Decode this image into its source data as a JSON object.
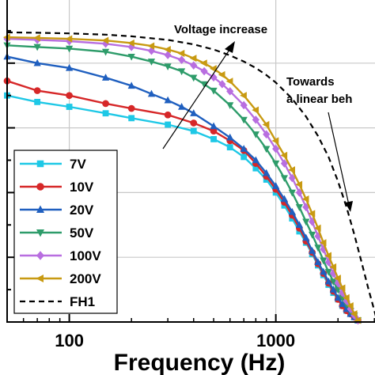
{
  "chart_data": {
    "type": "line",
    "title": "",
    "xlabel": "Frequency (Hz)",
    "ylabel": "",
    "xscale": "log",
    "xlim": [
      50,
      3300
    ],
    "ylim": [
      0,
      1.0
    ],
    "xticks": [
      {
        "value": 100,
        "label": "100"
      },
      {
        "value": 1000,
        "label": "1000"
      }
    ],
    "grid": true,
    "legend_position": "bottom-left",
    "series": [
      {
        "name": "7V",
        "color": "#1ec8e6",
        "marker": "square",
        "dash": false,
        "x": [
          50,
          70,
          100,
          150,
          200,
          300,
          400,
          500,
          600,
          700,
          800,
          900,
          1000,
          1100,
          1200,
          1300,
          1400,
          1500,
          1600,
          1700,
          1800,
          1900,
          2000,
          2100,
          2200,
          2300,
          2400,
          2500
        ],
        "y": [
          0.7,
          0.68,
          0.665,
          0.645,
          0.63,
          0.61,
          0.59,
          0.565,
          0.54,
          0.51,
          0.475,
          0.44,
          0.4,
          0.36,
          0.32,
          0.28,
          0.245,
          0.21,
          0.175,
          0.145,
          0.115,
          0.09,
          0.07,
          0.05,
          0.035,
          0.025,
          0.015,
          0.005
        ]
      },
      {
        "name": "10V",
        "color": "#d62728",
        "marker": "circle",
        "dash": false,
        "x": [
          50,
          70,
          100,
          150,
          200,
          300,
          400,
          500,
          600,
          700,
          800,
          900,
          1000,
          1100,
          1200,
          1300,
          1400,
          1500,
          1600,
          1700,
          1800,
          1900,
          2000,
          2100,
          2200,
          2300,
          2400,
          2500
        ],
        "y": [
          0.745,
          0.715,
          0.7,
          0.675,
          0.66,
          0.64,
          0.615,
          0.59,
          0.56,
          0.53,
          0.49,
          0.45,
          0.41,
          0.37,
          0.33,
          0.29,
          0.25,
          0.215,
          0.18,
          0.15,
          0.12,
          0.095,
          0.07,
          0.05,
          0.035,
          0.025,
          0.015,
          0.005
        ]
      },
      {
        "name": "20V",
        "color": "#1f5fbf",
        "marker": "triangle-up",
        "dash": false,
        "x": [
          50,
          70,
          100,
          150,
          200,
          250,
          300,
          350,
          400,
          500,
          600,
          700,
          800,
          900,
          1000,
          1100,
          1200,
          1300,
          1400,
          1500,
          1600,
          1700,
          1800,
          1900,
          2000,
          2100,
          2200,
          2300,
          2400,
          2500
        ],
        "y": [
          0.82,
          0.8,
          0.785,
          0.755,
          0.73,
          0.705,
          0.685,
          0.665,
          0.645,
          0.605,
          0.57,
          0.535,
          0.5,
          0.46,
          0.42,
          0.38,
          0.34,
          0.3,
          0.26,
          0.22,
          0.185,
          0.155,
          0.125,
          0.1,
          0.075,
          0.055,
          0.04,
          0.025,
          0.015,
          0.005
        ]
      },
      {
        "name": "50V",
        "color": "#2e9c6a",
        "marker": "triangle-down",
        "dash": false,
        "x": [
          50,
          70,
          100,
          150,
          200,
          250,
          300,
          350,
          400,
          450,
          500,
          600,
          700,
          800,
          900,
          1000,
          1100,
          1200,
          1300,
          1400,
          1500,
          1600,
          1700,
          1800,
          1900,
          2000,
          2100,
          2200,
          2300,
          2400,
          2500
        ],
        "y": [
          0.855,
          0.85,
          0.845,
          0.835,
          0.82,
          0.805,
          0.79,
          0.775,
          0.755,
          0.735,
          0.715,
          0.67,
          0.625,
          0.58,
          0.535,
          0.49,
          0.445,
          0.4,
          0.355,
          0.31,
          0.27,
          0.23,
          0.19,
          0.155,
          0.125,
          0.1,
          0.075,
          0.055,
          0.035,
          0.02,
          0.005
        ]
      },
      {
        "name": "100V",
        "color": "#b86ee0",
        "marker": "diamond",
        "dash": false,
        "x": [
          50,
          70,
          100,
          150,
          200,
          250,
          300,
          350,
          400,
          450,
          500,
          550,
          600,
          700,
          800,
          900,
          1000,
          1100,
          1200,
          1300,
          1400,
          1500,
          1600,
          1700,
          1800,
          1900,
          2000,
          2100,
          2200,
          2300,
          2400,
          2500
        ],
        "y": [
          0.875,
          0.872,
          0.868,
          0.86,
          0.85,
          0.838,
          0.825,
          0.81,
          0.793,
          0.775,
          0.756,
          0.735,
          0.713,
          0.67,
          0.625,
          0.58,
          0.535,
          0.49,
          0.445,
          0.4,
          0.355,
          0.31,
          0.265,
          0.225,
          0.185,
          0.15,
          0.12,
          0.09,
          0.065,
          0.04,
          0.02,
          0.005
        ]
      },
      {
        "name": "200V",
        "color": "#c89a12",
        "marker": "triangle-left",
        "dash": false,
        "x": [
          50,
          70,
          100,
          150,
          200,
          250,
          300,
          350,
          400,
          450,
          500,
          550,
          600,
          700,
          800,
          900,
          1000,
          1100,
          1200,
          1300,
          1400,
          1500,
          1600,
          1700,
          1800,
          1900,
          2000,
          2100,
          2200,
          2300,
          2400,
          2500
        ],
        "y": [
          0.88,
          0.878,
          0.875,
          0.87,
          0.862,
          0.853,
          0.842,
          0.83,
          0.815,
          0.8,
          0.783,
          0.764,
          0.744,
          0.7,
          0.655,
          0.61,
          0.56,
          0.515,
          0.47,
          0.425,
          0.38,
          0.335,
          0.29,
          0.245,
          0.205,
          0.17,
          0.135,
          0.105,
          0.075,
          0.05,
          0.025,
          0.005
        ]
      },
      {
        "name": "FH1",
        "color": "#000000",
        "marker": "none",
        "dash": true,
        "x": [
          50,
          70,
          100,
          150,
          200,
          300,
          400,
          500,
          600,
          700,
          800,
          900,
          1000,
          1200,
          1400,
          1600,
          1800,
          2000,
          2200,
          2400,
          2600,
          2800,
          3000,
          3100
        ],
        "y": [
          0.895,
          0.894,
          0.892,
          0.888,
          0.883,
          0.872,
          0.858,
          0.842,
          0.824,
          0.805,
          0.785,
          0.763,
          0.74,
          0.69,
          0.635,
          0.575,
          0.51,
          0.435,
          0.355,
          0.27,
          0.185,
          0.105,
          0.035,
          0.0
        ]
      }
    ],
    "annotations": [
      {
        "text": "Voltage increase"
      },
      {
        "text": "Towards"
      },
      {
        "text": "a linear beh"
      }
    ]
  }
}
